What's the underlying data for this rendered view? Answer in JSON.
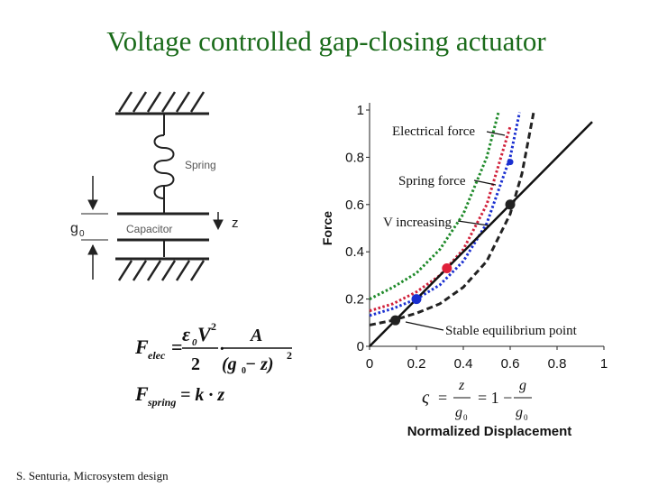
{
  "title": "Voltage controlled gap-closing actuator",
  "footer": "S. Senturia, Microsystem design",
  "diagram": {
    "spring": "Spring",
    "capacitor": "Capacitor",
    "gap": "g",
    "gap_sub": "0",
    "z": "z"
  },
  "equations": {
    "elec": {
      "F": "F",
      "sub": "elec",
      "eq": "=",
      "eps": "ε",
      "eps_sub": "0",
      "V": "V",
      "V_pow": "2",
      "den": "2",
      "dot": "·",
      "A": "A",
      "gap": "(g",
      "gap_sub": "0",
      "gap_end": " − z)",
      "gap_pow": "2"
    },
    "spring": {
      "F": "F",
      "sub": "spring",
      "eq": "= k · z"
    },
    "ratio": {
      "sym": "ς",
      "eq1": "=",
      "z": "z",
      "g": "g",
      "g_sub": "0",
      "eq2": "= 1 −",
      "g2": "g",
      "g3": "g",
      "g3_sub": "0"
    }
  },
  "chart_data": {
    "type": "line",
    "x_label": "Normalized Displacement",
    "y_label": "Force",
    "xlim": [
      0,
      1
    ],
    "ylim": [
      0,
      1
    ],
    "xticks": [
      0,
      0.2,
      0.4,
      0.6,
      0.8,
      1
    ],
    "yticks": [
      0,
      0.2,
      0.4,
      0.6,
      0.8,
      1
    ],
    "series": [
      {
        "color": "#222222",
        "style": "dashed",
        "x": [
          0,
          0.1,
          0.2,
          0.3,
          0.4,
          0.5,
          0.6,
          0.65,
          0.7
        ],
        "values": [
          0.09,
          0.11,
          0.14,
          0.18,
          0.25,
          0.36,
          0.56,
          0.73,
          0.99
        ]
      },
      {
        "color": "#1a2fd0",
        "style": "dotted",
        "x": [
          0,
          0.1,
          0.2,
          0.3,
          0.4,
          0.5,
          0.6,
          0.64
        ],
        "values": [
          0.13,
          0.16,
          0.2,
          0.26,
          0.36,
          0.52,
          0.8,
          0.99
        ]
      },
      {
        "color": "#d0203a",
        "style": "dotted",
        "x": [
          0,
          0.1,
          0.2,
          0.3,
          0.4,
          0.5,
          0.6
        ],
        "values": [
          0.15,
          0.18,
          0.23,
          0.3,
          0.41,
          0.6,
          0.93
        ]
      },
      {
        "color": "#1f8a2a",
        "style": "dotted",
        "x": [
          0,
          0.1,
          0.2,
          0.3,
          0.4,
          0.5,
          0.55
        ],
        "values": [
          0.2,
          0.25,
          0.31,
          0.41,
          0.56,
          0.8,
          0.99
        ]
      },
      {
        "color": "#111111",
        "style": "solid",
        "x": [
          0,
          0.95
        ],
        "values": [
          0,
          0.95
        ]
      }
    ],
    "points": [
      {
        "x": 0.11,
        "y": 0.11,
        "color": "#222222"
      },
      {
        "x": 0.2,
        "y": 0.2,
        "color": "#1a2fd0"
      },
      {
        "x": 0.33,
        "y": 0.33,
        "color": "#e0203a"
      },
      {
        "x": 0.6,
        "y": 0.6,
        "color": "#222222"
      },
      {
        "x": 0.6,
        "y": 0.78,
        "color": "#1a2fd0"
      }
    ],
    "annotations": [
      "Electrical force",
      "Spring force",
      "V increasing",
      "Stable equilibrium point"
    ]
  }
}
